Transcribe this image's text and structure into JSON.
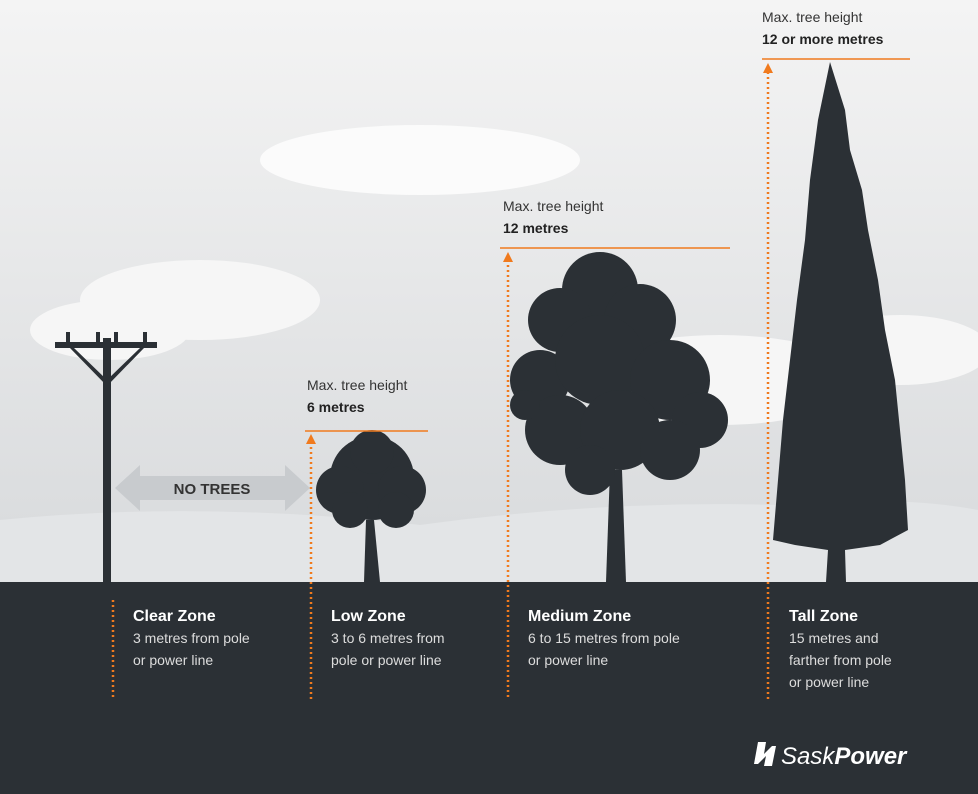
{
  "heights": [
    {
      "label": "Max. tree height",
      "value": "6 metres"
    },
    {
      "label": "Max. tree height",
      "value": "12 metres"
    },
    {
      "label": "Max. tree height",
      "value": "12 or more metres"
    }
  ],
  "no_trees": "NO TREES",
  "zones": [
    {
      "name": "Clear Zone",
      "lines": [
        "3 metres from pole",
        "or power line"
      ]
    },
    {
      "name": "Low Zone",
      "lines": [
        "3 to 6 metres from",
        "pole or power line"
      ]
    },
    {
      "name": "Medium Zone",
      "lines": [
        "6 to 15 metres from pole",
        "or power line"
      ]
    },
    {
      "name": "Tall Zone",
      "lines": [
        "15 metres and",
        "farther from pole",
        "or power line"
      ]
    }
  ],
  "logo": {
    "part1": "Sask",
    "part2": "Power"
  }
}
